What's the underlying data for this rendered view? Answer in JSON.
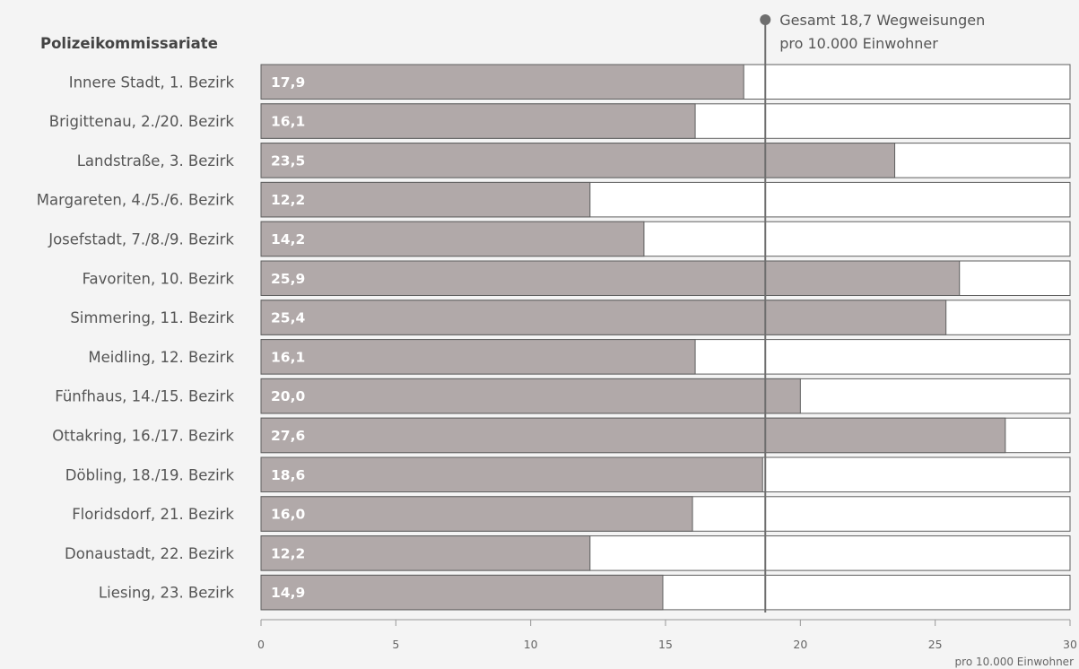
{
  "colors": {
    "background": "#f4f4f4",
    "bar_fill": "#b1a9a9",
    "track_fill": "#ffffff",
    "bar_border": "#5f5f5f",
    "reference_line": "#6e6e6e",
    "text": "#555555",
    "value_text": "#ffffff"
  },
  "chart_data": {
    "type": "bar",
    "orientation": "horizontal",
    "category_header": "Polizeikommissariate",
    "categories": [
      "Innere Stadt, 1. Bezirk",
      "Brigittenau, 2./20. Bezirk",
      "Landstraße, 3. Bezirk",
      "Margareten, 4./5./6. Bezirk",
      "Josefstadt, 7./8./9. Bezirk",
      "Favoriten, 10. Bezirk",
      "Simmering, 11. Bezirk",
      "Meidling, 12. Bezirk",
      "Fünfhaus, 14./15. Bezirk",
      "Ottakring, 16./17. Bezirk",
      "Döbling, 18./19. Bezirk",
      "Floridsdorf, 21. Bezirk",
      "Donaustadt, 22. Bezirk",
      "Liesing, 23. Bezirk"
    ],
    "values": [
      17.9,
      16.1,
      23.5,
      12.2,
      14.2,
      25.9,
      25.4,
      16.1,
      20.0,
      27.6,
      18.6,
      16.0,
      12.2,
      14.9
    ],
    "value_labels": [
      "17,9",
      "16,1",
      "23,5",
      "12,2",
      "14,2",
      "25,9",
      "25,4",
      "16,1",
      "20,0",
      "27,6",
      "18,6",
      "16,0",
      "12,2",
      "14,9"
    ],
    "xlim": [
      0,
      30
    ],
    "xticks": [
      0,
      5,
      10,
      15,
      20,
      25,
      30
    ],
    "xtick_labels": [
      "0",
      "5",
      "10",
      "15",
      "20",
      "25",
      "30"
    ],
    "xlabel": "pro 10.000 Einwohner",
    "reference": {
      "value": 18.7,
      "label_line1": "Gesamt 18,7 Wegweisungen",
      "label_line2": "pro 10.000 Einwohner"
    },
    "grid": false
  }
}
